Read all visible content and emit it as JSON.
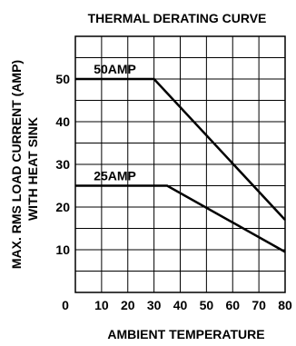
{
  "chart_data": {
    "type": "line",
    "title": "THERMAL DERATING CURVE",
    "xlabel": "AMBIENT TEMPERATURE",
    "ylabel_line1": "MAX. RMS LOAD CURRENT (AMP)",
    "ylabel_line2": "WITH HEAT SINK",
    "xlim": [
      0,
      80
    ],
    "ylim": [
      0,
      60
    ],
    "x_ticks": [
      "0",
      "10",
      "20",
      "30",
      "40",
      "50",
      "60",
      "70",
      "80"
    ],
    "y_ticks": [
      "10",
      "20",
      "30",
      "40",
      "50"
    ],
    "grid": true,
    "series": [
      {
        "name": "50AMP",
        "x": [
          0,
          30,
          80
        ],
        "y": [
          50,
          50,
          17
        ]
      },
      {
        "name": "25AMP",
        "x": [
          0,
          35,
          80
        ],
        "y": [
          25,
          25,
          9.5
        ]
      }
    ]
  }
}
